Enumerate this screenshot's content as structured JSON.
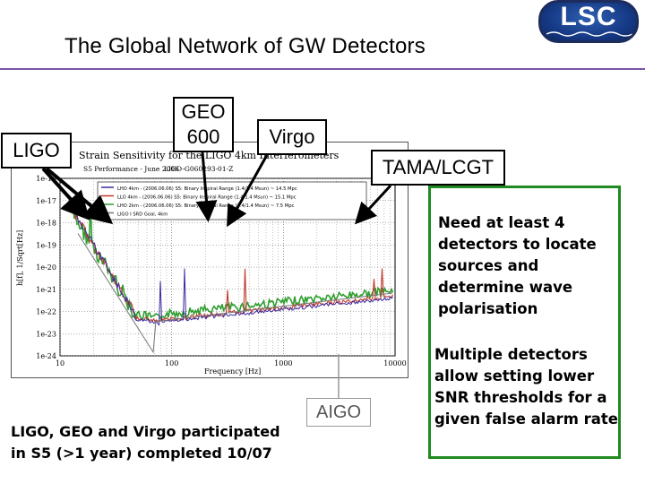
{
  "header": {
    "title": "The Global Network of GW Detectors",
    "logo_text": "LSC",
    "rule_color": "#7b55a8"
  },
  "detector_labels": {
    "ligo": "LIGO",
    "geo": "GEO 600",
    "virgo": "Virgo",
    "tama": "TAMA/LCGT",
    "aigo": "AIGO"
  },
  "embedded_plot": {
    "title": "Strain Sensitivity for the LIGO 4km Interferometers",
    "subtitle_left": "S5 Performance - June 2006",
    "subtitle_right": "LIGO-G060293-01-Z",
    "xlabel": "Frequency [Hz]",
    "ylabel": "h[f], 1/Sqrt[Hz]",
    "y_ticks": [
      "1e-16",
      "1e-17",
      "1e-18",
      "1e-19",
      "1e-20",
      "1e-21",
      "1e-22",
      "1e-23",
      "1e-24"
    ],
    "x_ticks": [
      "10",
      "100",
      "1000",
      "10000"
    ],
    "legend": [
      "LHO 4km - (2006.06.06) S5: Binary Inspiral Range (1.4/1.4 Msun) ~ 14.5 Mpc",
      "LLO 4km - (2006.06.06) S5: Binary Inspiral Range (1.4/1.4 Msun) ~ 15.1 Mpc",
      "LHO 2km - (2006.06.06) S5: Binary Inspiral Range (1.4/1.4 Msun) ~ 7.5 Mpc",
      "LIGO I SRD Goal, 4km"
    ],
    "legend_colors": [
      "#3a2aa0",
      "#c0392b",
      "#2e9e2e",
      "#777777"
    ]
  },
  "notes": {
    "note1": "Need at least 4 detectors to locate sources and determine wave polarisation",
    "note2": "Multiple detectors allow setting lower SNR thresholds for a given false alarm rate",
    "border_color": "#1f8a1f"
  },
  "footer": {
    "line1": "LIGO, GEO and Virgo participated",
    "line2": "in S5 (>1 year) completed 10/07"
  }
}
